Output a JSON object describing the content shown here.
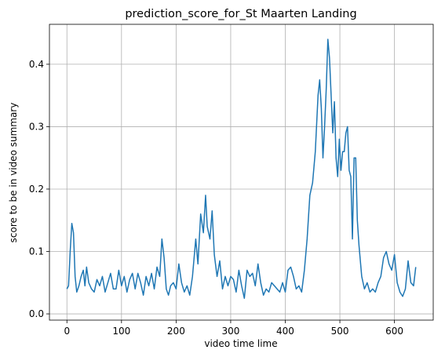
{
  "chart_data": {
    "type": "line",
    "title": "prediction_score_for_St Maarten Landing",
    "xlabel": "video time lime",
    "ylabel": "score to be in video summary",
    "x": [
      0,
      3,
      6,
      9,
      12,
      15,
      18,
      22,
      26,
      30,
      33,
      36,
      40,
      45,
      50,
      55,
      60,
      65,
      70,
      75,
      80,
      85,
      90,
      95,
      100,
      105,
      110,
      115,
      120,
      125,
      130,
      135,
      140,
      145,
      150,
      155,
      160,
      165,
      170,
      174,
      178,
      182,
      186,
      190,
      195,
      200,
      205,
      210,
      215,
      220,
      225,
      230,
      236,
      240,
      245,
      250,
      254,
      257,
      262,
      266,
      270,
      275,
      280,
      285,
      290,
      295,
      300,
      305,
      310,
      315,
      320,
      325,
      330,
      335,
      340,
      345,
      350,
      355,
      360,
      365,
      370,
      375,
      380,
      385,
      390,
      395,
      400,
      405,
      410,
      415,
      420,
      425,
      430,
      435,
      440,
      445,
      450,
      455,
      460,
      463,
      466,
      469,
      472,
      475,
      478,
      481,
      484,
      487,
      490,
      493,
      496,
      499,
      502,
      505,
      508,
      511,
      514,
      517,
      520,
      523,
      526,
      529,
      532,
      535,
      540,
      545,
      550,
      555,
      560,
      565,
      570,
      575,
      580,
      585,
      590,
      595,
      600,
      605,
      610,
      615,
      620,
      625,
      630,
      635,
      639
    ],
    "series": [
      {
        "name": "prediction_score",
        "color": "#1f77b4",
        "values": [
          0.04,
          0.045,
          0.1,
          0.145,
          0.13,
          0.06,
          0.035,
          0.045,
          0.06,
          0.07,
          0.045,
          0.075,
          0.05,
          0.04,
          0.035,
          0.055,
          0.045,
          0.06,
          0.035,
          0.05,
          0.065,
          0.04,
          0.04,
          0.07,
          0.045,
          0.06,
          0.035,
          0.055,
          0.065,
          0.04,
          0.065,
          0.05,
          0.03,
          0.06,
          0.045,
          0.065,
          0.04,
          0.075,
          0.06,
          0.12,
          0.09,
          0.04,
          0.03,
          0.045,
          0.05,
          0.04,
          0.08,
          0.05,
          0.035,
          0.045,
          0.03,
          0.06,
          0.12,
          0.08,
          0.16,
          0.13,
          0.19,
          0.14,
          0.12,
          0.165,
          0.095,
          0.06,
          0.085,
          0.04,
          0.06,
          0.045,
          0.06,
          0.055,
          0.035,
          0.07,
          0.045,
          0.025,
          0.07,
          0.06,
          0.065,
          0.045,
          0.08,
          0.05,
          0.03,
          0.04,
          0.035,
          0.05,
          0.045,
          0.04,
          0.035,
          0.05,
          0.035,
          0.07,
          0.075,
          0.06,
          0.04,
          0.045,
          0.035,
          0.07,
          0.12,
          0.19,
          0.21,
          0.26,
          0.35,
          0.375,
          0.33,
          0.25,
          0.3,
          0.36,
          0.44,
          0.41,
          0.35,
          0.29,
          0.34,
          0.25,
          0.22,
          0.28,
          0.23,
          0.26,
          0.26,
          0.29,
          0.3,
          0.23,
          0.22,
          0.12,
          0.25,
          0.25,
          0.15,
          0.11,
          0.06,
          0.04,
          0.05,
          0.035,
          0.04,
          0.035,
          0.05,
          0.06,
          0.09,
          0.1,
          0.08,
          0.07,
          0.095,
          0.05,
          0.035,
          0.028,
          0.04,
          0.085,
          0.05,
          0.045,
          0.075
        ]
      }
    ],
    "xlim": [
      -32,
      671
    ],
    "ylim": [
      -0.01,
      0.464
    ],
    "xticks": [
      0,
      100,
      200,
      300,
      400,
      500,
      600
    ],
    "yticks": [
      {
        "value": 0,
        "label": "0.0"
      },
      0.1,
      0.2,
      0.3,
      0.4
    ],
    "grid": true
  }
}
